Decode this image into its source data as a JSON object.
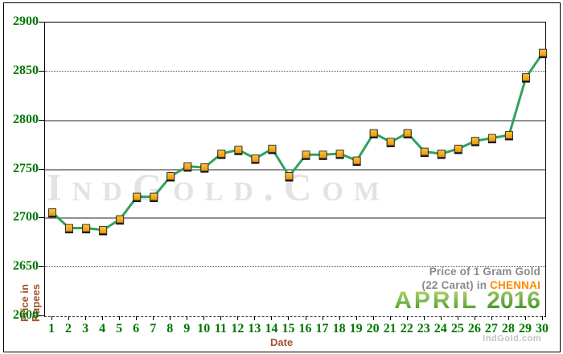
{
  "watermark": "IndGold.Com",
  "brand_small": "IndGold.com",
  "axis_titles": {
    "y_line1": "Price in",
    "y_line2": "Rupees",
    "x": "Date"
  },
  "legend": {
    "line1": "Price of 1 Gram Gold",
    "line2_prefix": "(22 Carat) in ",
    "city": "CHENNAI",
    "month": "APRIL",
    "year": "2016"
  },
  "colors": {
    "axis_label_green": "#007700",
    "line_green": "#2FA35D",
    "marker_gold_light": "#FFC63C",
    "marker_gold_dark": "#EF9400",
    "marker_shadow": "#111111",
    "axis_title_brown": "#A0522D",
    "legend_gray": "#8A8A8A",
    "city_orange": "#FF8800",
    "month_green_light": "#BFDC74",
    "month_green_dark": "#3F941F",
    "watermark_gray": "#E3E3E3"
  },
  "chart_data": {
    "type": "line",
    "title": "Price of 1 Gram Gold (22 Carat) in CHENNAI - APRIL 2016",
    "xlabel": "Date",
    "ylabel": "Price in Rupees",
    "x": [
      1,
      2,
      3,
      4,
      5,
      6,
      7,
      8,
      9,
      10,
      11,
      12,
      13,
      14,
      15,
      16,
      17,
      18,
      19,
      20,
      21,
      22,
      23,
      24,
      25,
      26,
      27,
      28,
      29,
      30
    ],
    "values": [
      2706,
      2690,
      2690,
      2688,
      2699,
      2722,
      2722,
      2743,
      2753,
      2752,
      2766,
      2770,
      2761,
      2771,
      2743,
      2765,
      2765,
      2766,
      2759,
      2787,
      2778,
      2787,
      2768,
      2766,
      2771,
      2779,
      2782,
      2785,
      2844,
      2869
    ],
    "ylim": [
      2600,
      2900
    ],
    "y_ticks": [
      {
        "value": 2900,
        "grid": "border"
      },
      {
        "value": 2850,
        "grid": "dotted"
      },
      {
        "value": 2800,
        "grid": "solid"
      },
      {
        "value": 2750,
        "grid": "solid"
      },
      {
        "value": 2700,
        "grid": "solid"
      },
      {
        "value": 2650,
        "grid": "dotted"
      },
      {
        "value": 2600,
        "grid": "axis"
      }
    ],
    "grid": true,
    "legend_position": "bottom-right"
  }
}
